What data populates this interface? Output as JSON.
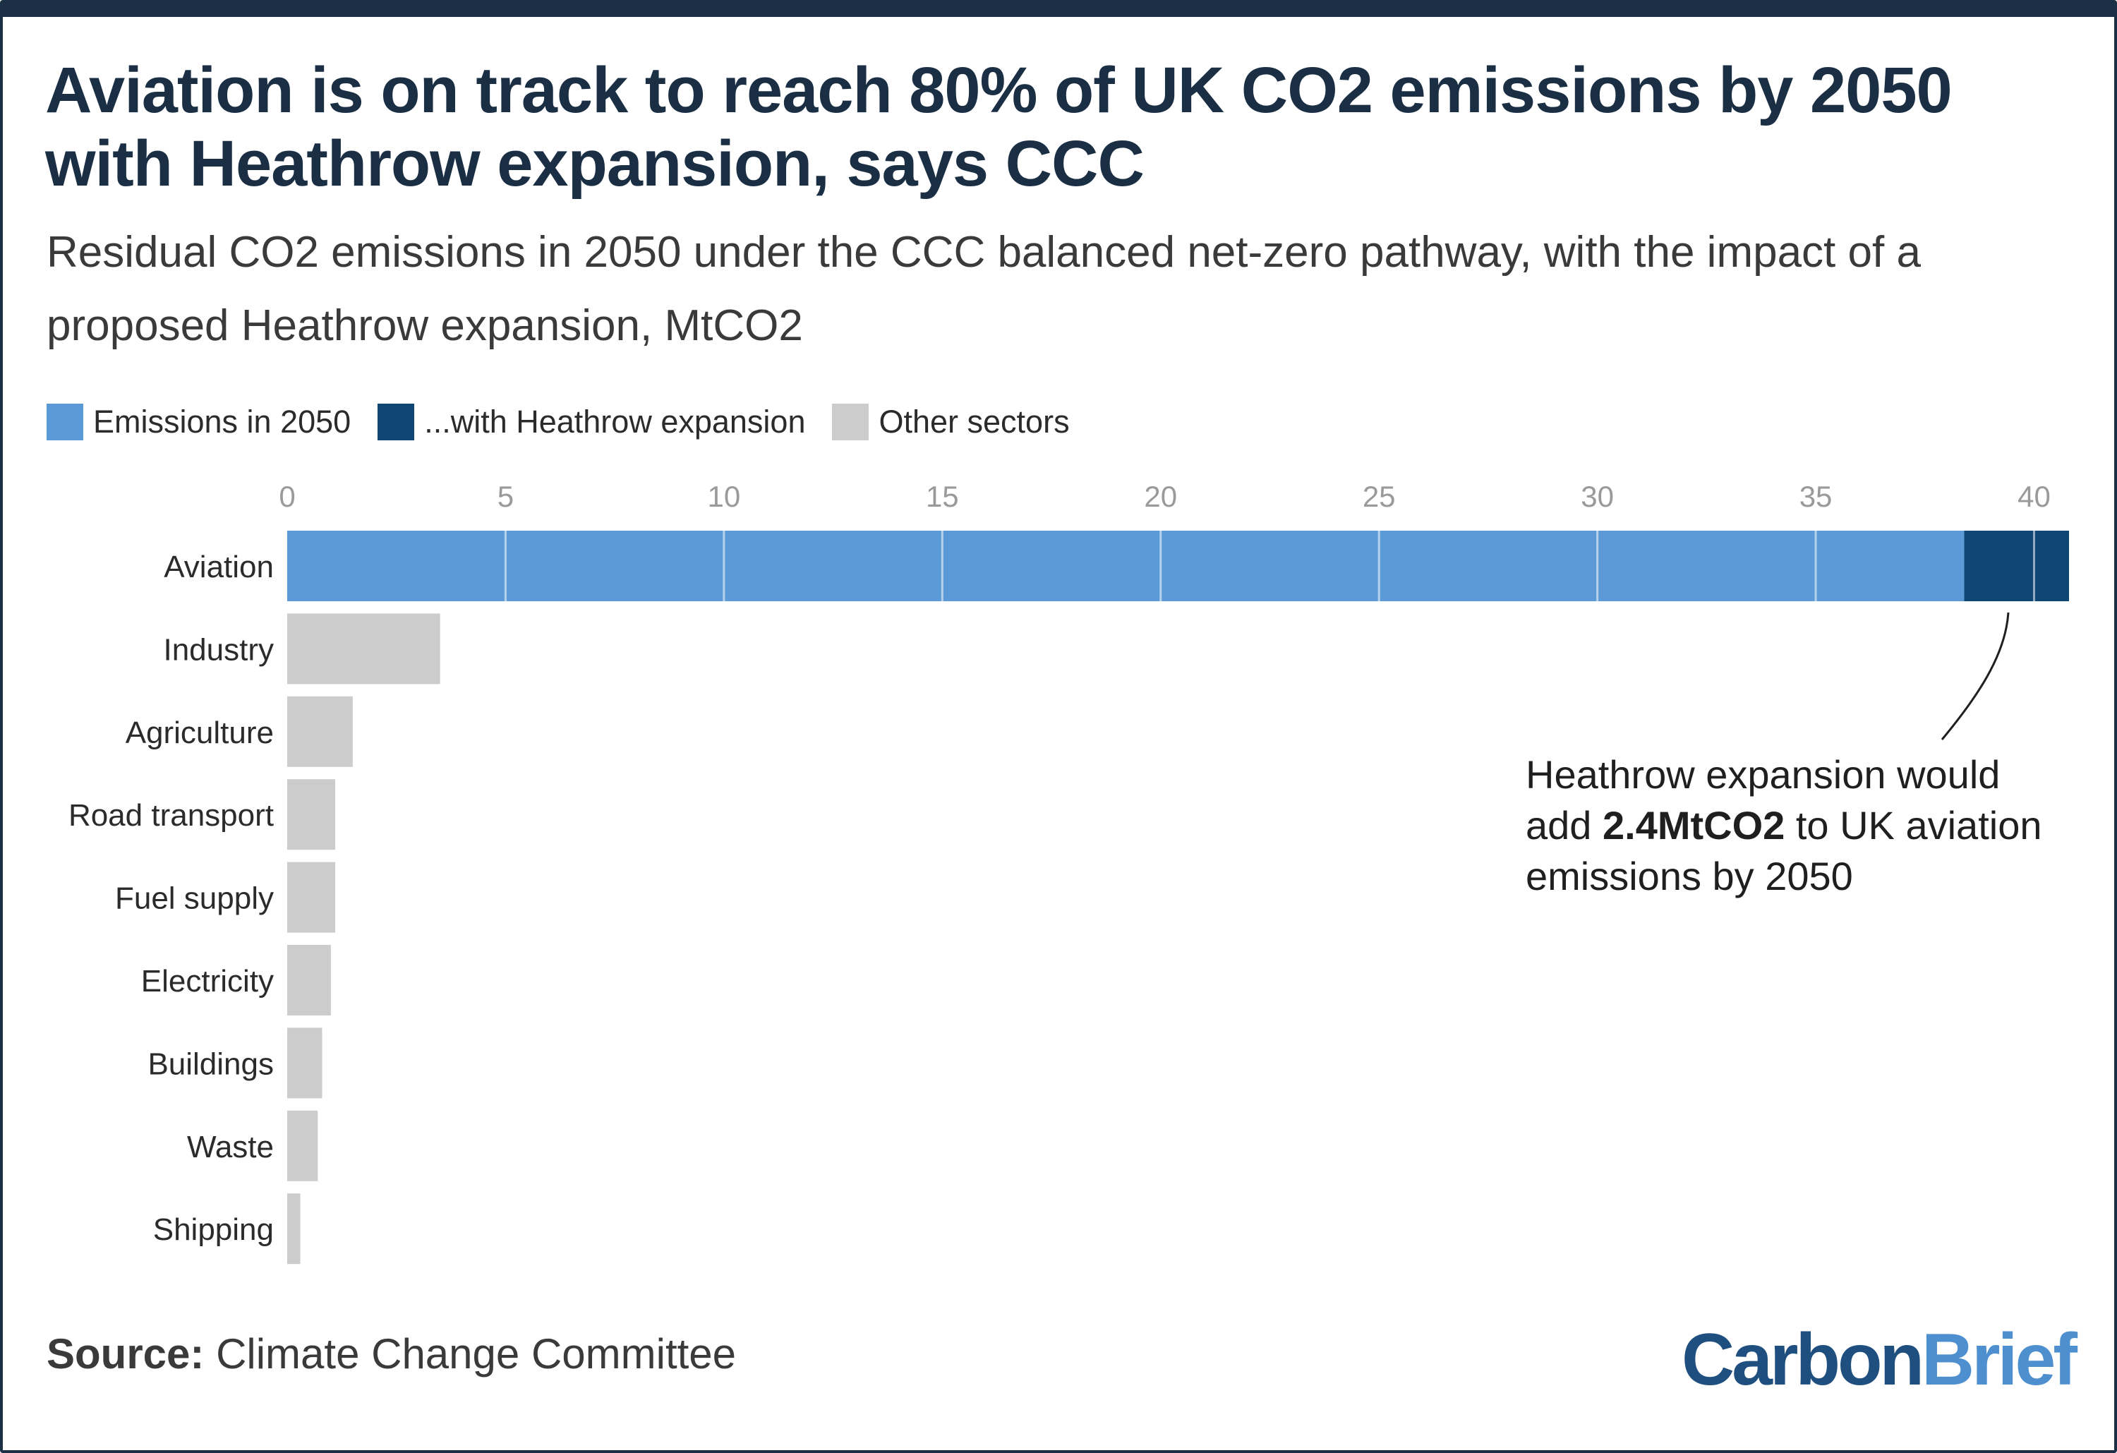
{
  "title": "Aviation is on track to reach 80% of UK CO2 emissions by 2050 with Heathrow expansion, says CCC",
  "subtitle": "Residual CO2 emissions in 2050 under the CCC balanced net-zero pathway, with the impact of a proposed Heathrow expansion, MtCO2",
  "legend": [
    {
      "label": "Emissions in 2050",
      "color": "#5b9ad6"
    },
    {
      "label": "...with Heathrow expansion",
      "color": "#0f4673"
    },
    {
      "label": "Other sectors",
      "color": "#cccccc"
    }
  ],
  "annotation": {
    "prefix": "Heathrow expansion would add ",
    "bold": "2.4MtCO2",
    "suffix": " to UK aviation emissions by 2050"
  },
  "source": {
    "label": "Source:",
    "text": "Climate Change Committee"
  },
  "logo": {
    "part1": "Carbon",
    "part2": "Brief"
  },
  "chart_data": {
    "type": "bar",
    "orientation": "horizontal",
    "stacked": true,
    "categories": [
      "Aviation",
      "Industry",
      "Agriculture",
      "Road transport",
      "Fuel supply",
      "Electricity",
      "Buildings",
      "Waste",
      "Shipping"
    ],
    "series": [
      {
        "name": "Emissions in 2050",
        "color": "#5b9ad6",
        "values": [
          38.4,
          null,
          null,
          null,
          null,
          null,
          null,
          null,
          null
        ]
      },
      {
        "name": "...with Heathrow expansion",
        "color": "#0f4673",
        "values": [
          2.4,
          null,
          null,
          null,
          null,
          null,
          null,
          null,
          null
        ]
      },
      {
        "name": "Other sectors",
        "color": "#cccccc",
        "values": [
          null,
          3.5,
          1.5,
          1.1,
          1.1,
          1.0,
          0.8,
          0.7,
          0.3
        ]
      }
    ],
    "x_ticks": [
      0,
      5,
      10,
      15,
      20,
      25,
      30,
      35,
      40
    ],
    "xlim": [
      0,
      40.8
    ],
    "grid": true
  }
}
